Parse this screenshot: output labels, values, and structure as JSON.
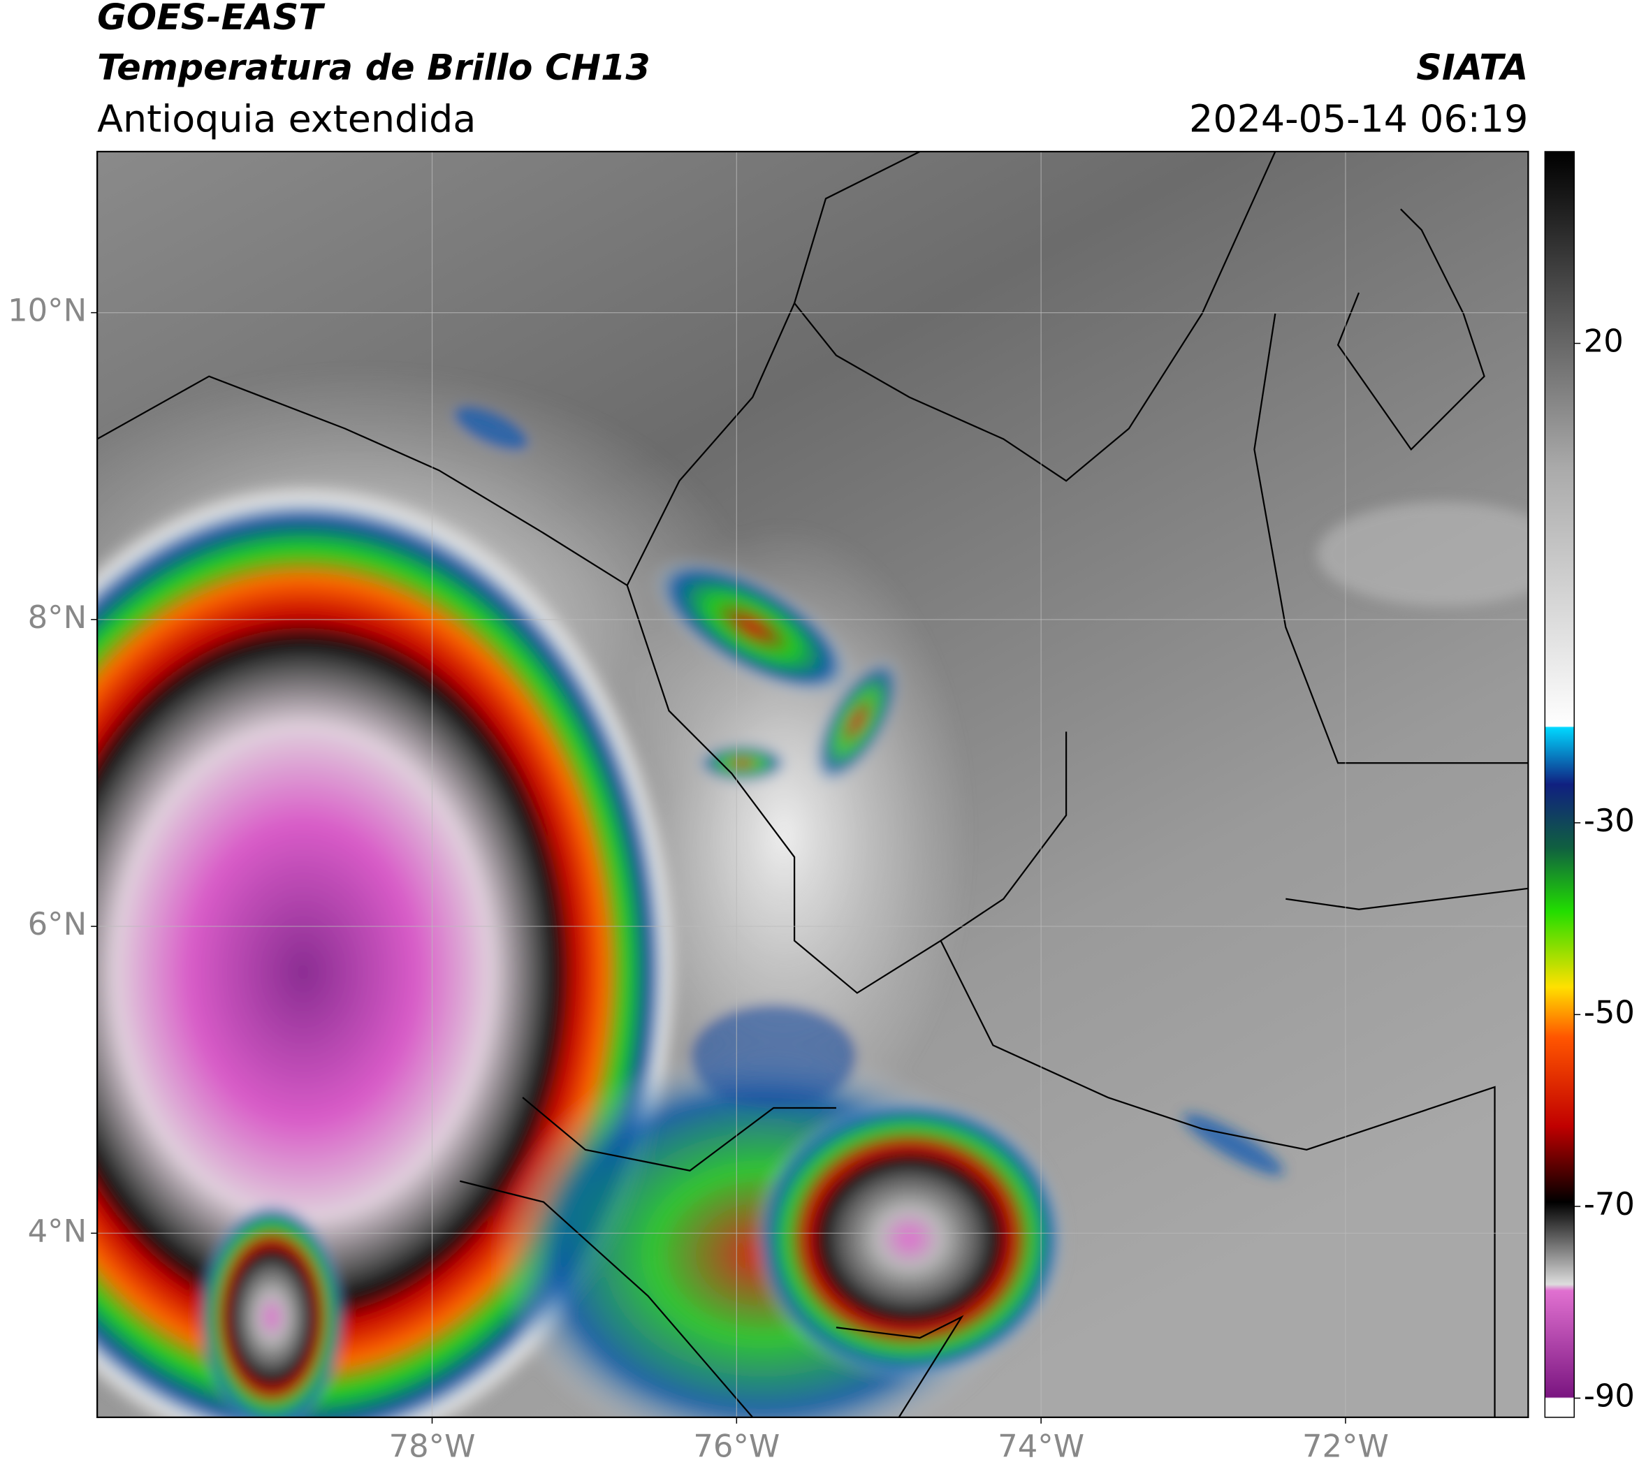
{
  "header": {
    "title_line1": "GOES-EAST",
    "title_line2": "Temperatura de Brillo CH13",
    "subtitle": "Antioquia extendida",
    "source": "SIATA",
    "datetime": "2024-05-14 06:19"
  },
  "map": {
    "xlim": [
      -80.2,
      -70.8
    ],
    "ylim": [
      2.8,
      11.05
    ],
    "lat_ticks": [
      {
        "value": 10,
        "label": "10°N"
      },
      {
        "value": 8,
        "label": "8°N"
      },
      {
        "value": 6,
        "label": "6°N"
      },
      {
        "value": 4,
        "label": "4°N"
      }
    ],
    "lon_ticks": [
      {
        "value": -78,
        "label": "78°W"
      },
      {
        "value": -76,
        "label": "76°W"
      },
      {
        "value": -74,
        "label": "74°W"
      },
      {
        "value": -72,
        "label": "72°W"
      }
    ],
    "grid": true
  },
  "colorbar": {
    "lim": [
      -92,
      40
    ],
    "ticks": [
      20,
      -30,
      -50,
      -70,
      -90
    ]
  }
}
